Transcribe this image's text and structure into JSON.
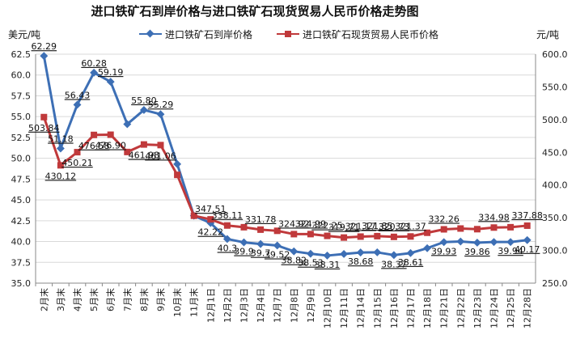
{
  "chart_data": {
    "type": "line",
    "title": "进口铁矿石到岸价格与进口铁矿石现货贸易人民币价格走势图",
    "left_unit": "美元/吨",
    "right_unit": "元/吨",
    "categories": [
      "2月末",
      "3月末",
      "4月末",
      "5月末",
      "6月末",
      "7月末",
      "8月末",
      "9月末",
      "10月末",
      "11月末",
      "12月1日",
      "12月2日",
      "12月3日",
      "12月4日",
      "12月7日",
      "12月8日",
      "12月9日",
      "12月10日",
      "12月11日",
      "12月14日",
      "12月15日",
      "12月16日",
      "12月17日",
      "12月18日",
      "12月21日",
      "12月22日",
      "12月23日",
      "12月24日",
      "12月25日",
      "12月28日"
    ],
    "legend_position": "top",
    "series": [
      {
        "name": "进口铁矿石到岸价格",
        "axis": "left",
        "color": "#3d6fb5",
        "marker": "diamond",
        "values": [
          62.29,
          51.18,
          56.43,
          60.28,
          59.19,
          54.1,
          55.8,
          55.29,
          49.3,
          43.1,
          42.22,
          40.3,
          39.9,
          39.7,
          39.52,
          38.82,
          38.53,
          38.31,
          38.5,
          38.68,
          38.7,
          38.37,
          38.61,
          39.2,
          39.93,
          40.0,
          39.86,
          39.94,
          39.94,
          40.17
        ],
        "labels": [
          "62.29",
          "51.18",
          "56.43",
          "60.28",
          "59.19",
          "",
          "55.80",
          "55.29",
          "",
          "",
          "42.22",
          "40.3",
          "39.9",
          "39.7",
          "39.52",
          "38.82",
          "38.53",
          "38.31",
          "",
          "38.68",
          "",
          "38.37",
          "38.61",
          "",
          "39.93",
          "",
          "39.86",
          "",
          "39.94",
          "40.17"
        ]
      },
      {
        "name": "进口铁矿石现货贸易人民币价格",
        "axis": "right",
        "color": "#c0393b",
        "marker": "square",
        "values": [
          503.84,
          430.12,
          450.21,
          476.58,
          476.9,
          450.5,
          461.98,
          461.06,
          415.5,
          353.0,
          347.51,
          338.11,
          335.5,
          331.78,
          330.0,
          324.92,
          324.99,
          322.25,
          319.71,
          321.17,
          321.85,
          320.73,
          321.37,
          327.0,
          332.26,
          333.5,
          332.5,
          334.98,
          335.5,
          337.88
        ],
        "labels": [
          "503.84",
          "430.12",
          "450.21",
          "476.58",
          "476.90",
          "",
          "461.98",
          "461.06",
          "",
          "",
          "347.51",
          "338.11",
          "",
          "331.78",
          "",
          "324.92",
          "324.99",
          "322.25",
          "319.71",
          "321.17",
          "321.85",
          "320.73",
          "321.37",
          "",
          "332.26",
          "",
          "",
          "334.98",
          "",
          "337.88"
        ]
      }
    ],
    "left_axis": {
      "min": 35.0,
      "max": 62.5,
      "step": 2.5,
      "tick_labels": [
        "35.0",
        "37.5",
        "40.0",
        "42.5",
        "45.0",
        "47.5",
        "50.0",
        "52.5",
        "55.0",
        "57.5",
        "60.0",
        "62.5"
      ]
    },
    "right_axis": {
      "min": 250.0,
      "max": 600.0,
      "step": 50,
      "tick_labels": [
        "250.0",
        "300.0",
        "350.0",
        "400.0",
        "450.0",
        "500.0",
        "550.0",
        "600.0"
      ]
    },
    "grid": true
  }
}
